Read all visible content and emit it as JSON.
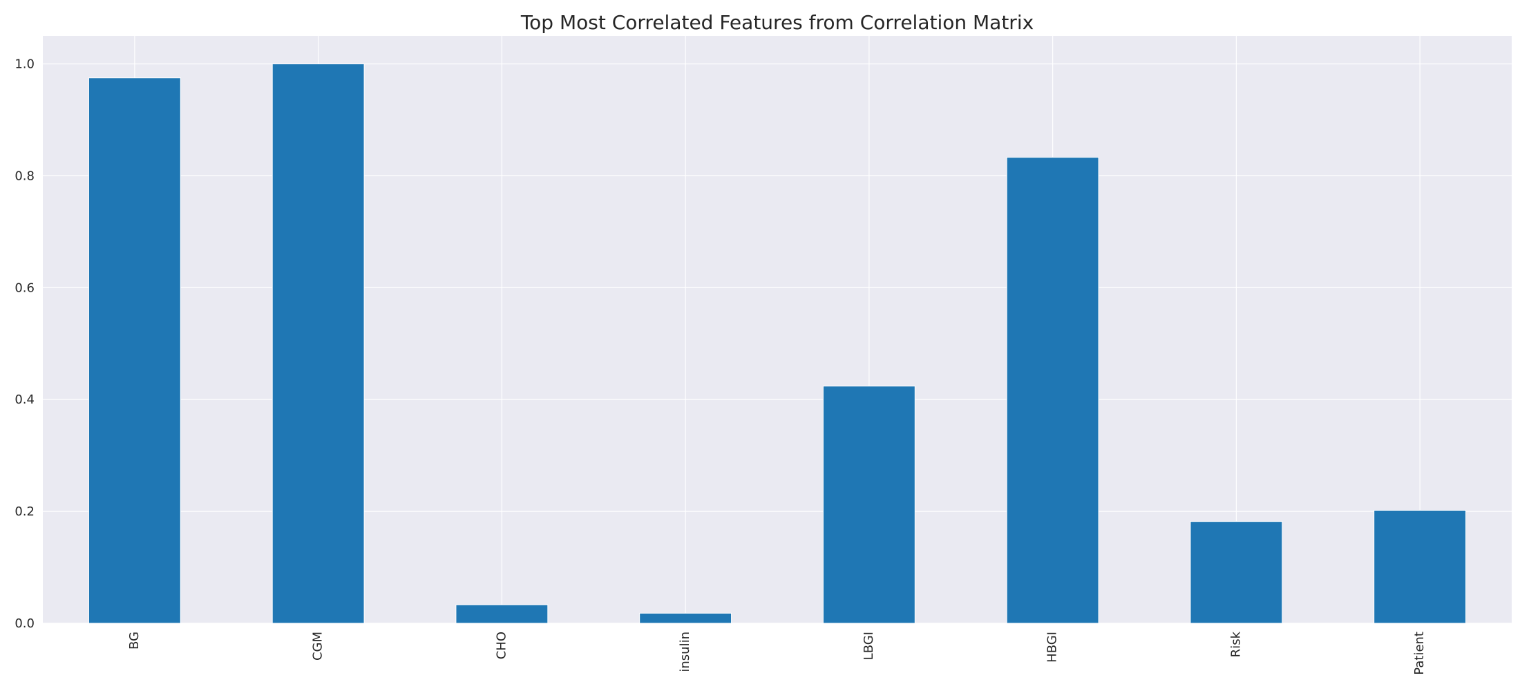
{
  "chart_data": {
    "type": "bar",
    "title": "Top Most Correlated Features from Correlation Matrix",
    "xlabel": "",
    "ylabel": "",
    "categories": [
      "BG",
      "CGM",
      "CHO",
      "insulin",
      "LBGI",
      "HBGI",
      "Risk",
      "Patient"
    ],
    "values": [
      0.975,
      1.0,
      0.033,
      0.018,
      0.424,
      0.833,
      0.182,
      0.202
    ],
    "ylim": [
      0,
      1.05
    ],
    "yticks": [
      "0.0",
      "0.2",
      "0.4",
      "0.6",
      "0.8",
      "1.0"
    ],
    "grid": true,
    "legend": "none",
    "colors": {
      "bar": "#1f77b4",
      "plot_background": "#eaeaf2",
      "grid": "#ffffff",
      "text": "#262626"
    }
  }
}
